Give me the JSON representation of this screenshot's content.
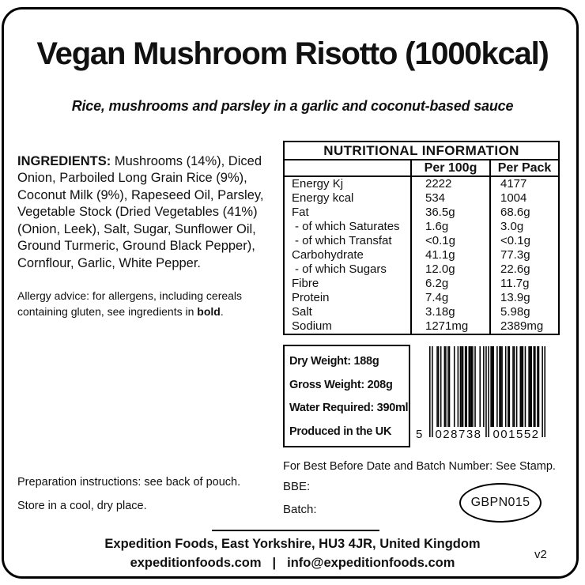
{
  "colors": {
    "ink": "#111111",
    "background": "#ffffff"
  },
  "header": {
    "title": "Vegan Mushroom Risotto (1000kcal)",
    "subtitle": "Rice, mushrooms and parsley in a garlic and coconut-based sauce"
  },
  "ingredients": {
    "heading": "INGREDIENTS:",
    "text": " Mushrooms (14%), Diced Onion, Parboiled Long Grain Rice (9%), Coconut Milk (9%), Rapeseed Oil, Parsley, Vegetable Stock (Dried Vegetables (41%) (Onion, Leek), Salt, Sugar, Sunflower Oil, Ground Turmeric, Ground Black Pepper), Cornflour, Garlic, White Pepper."
  },
  "allergy": {
    "text_before": "Allergy advice: for allergens, including cereals containing gluten, see ingredients in ",
    "bold_word": "bold",
    "text_after": "."
  },
  "nutrition": {
    "title": "NUTRITIONAL INFORMATION",
    "col_per100g": "Per 100g",
    "col_perpack": "Per Pack",
    "rows": [
      {
        "label": "Energy Kj",
        "per100g": "2222",
        "perPack": "4177"
      },
      {
        "label": "Energy kcal",
        "per100g": "534",
        "perPack": "1004"
      },
      {
        "label": "Fat",
        "per100g": "36.5g",
        "perPack": "68.6g"
      },
      {
        "label": "- of which Saturates",
        "per100g": "1.6g",
        "perPack": "3.0g"
      },
      {
        "label": "- of which Transfat",
        "per100g": "<0.1g",
        "perPack": "<0.1g"
      },
      {
        "label": "Carbohydrate",
        "per100g": "41.1g",
        "perPack": "77.3g"
      },
      {
        "label": "- of which Sugars",
        "per100g": "12.0g",
        "perPack": "22.6g"
      },
      {
        "label": "Fibre",
        "per100g": "6.2g",
        "perPack": "11.7g"
      },
      {
        "label": "Protein",
        "per100g": "7.4g",
        "perPack": "13.9g"
      },
      {
        "label": "Salt",
        "per100g": "3.18g",
        "perPack": "5.98g"
      },
      {
        "label": "Sodium",
        "per100g": "1271mg",
        "perPack": "2389mg"
      }
    ]
  },
  "weight_box": {
    "lines": [
      "Dry Weight: 188g",
      "Gross Weight: 208g",
      "Water Required: 390ml",
      "Produced in the UK"
    ]
  },
  "barcode": {
    "first_digit": "5",
    "left_group": "028738",
    "right_group": "001552",
    "pattern": "10100011010011011000100101110110111101000100101010111001011100101100110100111010011101101100101"
  },
  "stamp": {
    "note": "For Best Before Date and Batch Number: See Stamp.",
    "bbe_label": "BBE:",
    "batch_label": "Batch:",
    "batch_stamp": "GBPN015"
  },
  "storage": {
    "preparation": "Preparation instructions: see back of pouch.",
    "keep": "Store in a cool, dry place."
  },
  "footer": {
    "address": "Expedition Foods, East Yorkshire, HU3 4JR, United Kingdom",
    "website": "expeditionfoods.com",
    "separator": "|",
    "email": "info@expeditionfoods.com",
    "version": "v2"
  }
}
